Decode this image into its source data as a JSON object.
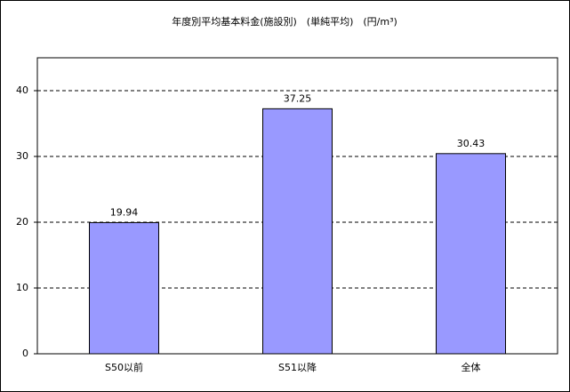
{
  "chart_data": {
    "type": "bar",
    "title": "年度別平均基本料金(施設別)　(単純平均)　(円/m³)",
    "categories": [
      "S50以前",
      "S51以降",
      "全体"
    ],
    "values": [
      19.94,
      37.25,
      30.43
    ],
    "color": "#9999ff",
    "ylim": [
      0,
      45
    ],
    "yticks": [
      0,
      10,
      20,
      30,
      40
    ],
    "grid": true
  }
}
